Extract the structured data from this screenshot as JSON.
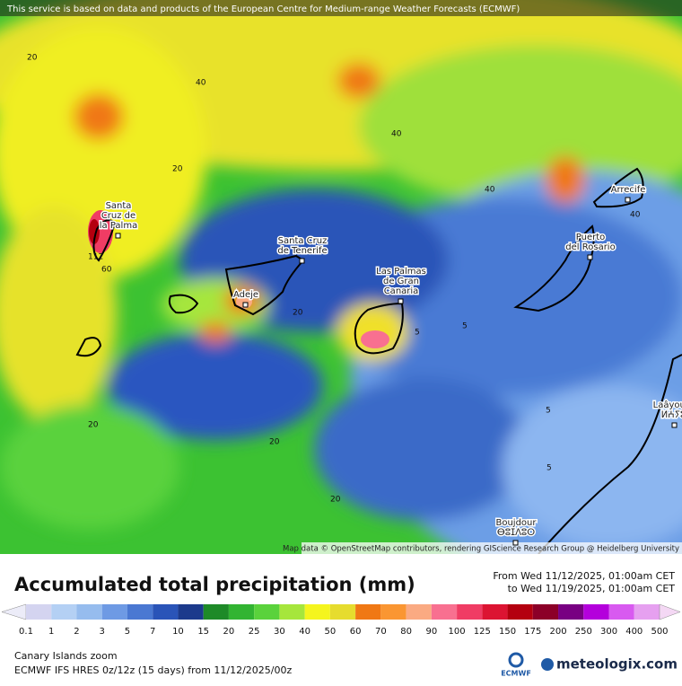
{
  "banner": "This service is based on data and products of the European Centre for Medium-range Weather Forecasts (ECMWF)",
  "attribution": "Map data © OpenStreetMap contributors, rendering GIScience Research Group @ Heidelberg University",
  "places": [
    {
      "lines": [
        "Santa",
        "Cruz de",
        "la Palma"
      ]
    },
    {
      "lines": [
        "Santa Cruz",
        "de Tenerife"
      ]
    },
    {
      "lines": [
        "Adeje"
      ]
    },
    {
      "lines": [
        "Las Palmas",
        "de Gran",
        "Canaria"
      ]
    },
    {
      "lines": [
        "Puerto",
        "del Rosario"
      ]
    },
    {
      "lines": [
        "Arrecife"
      ]
    },
    {
      "lines": [
        "Laâyoune",
        "ⵍⵄⵢⵓⵏ"
      ]
    },
    {
      "lines": [
        "Boujdour",
        "ⴱⵓⵊⴷⵓⵔ"
      ]
    }
  ],
  "contour_labels": [
    "20",
    "40",
    "40",
    "20",
    "40",
    "40",
    "112",
    "60",
    "20",
    "5",
    "5",
    "5",
    "5",
    "20",
    "20",
    "20"
  ],
  "title": "Accumulated total precipitation (mm)",
  "period": [
    "From Wed 11/12/2025, 01:00am CET",
    "to Wed 11/19/2025, 01:00am CET"
  ],
  "legend": {
    "levels": [
      0.1,
      1,
      2,
      3,
      5,
      7,
      10,
      15,
      20,
      25,
      30,
      40,
      50,
      60,
      70,
      80,
      90,
      100,
      125,
      150,
      175,
      200,
      250,
      300,
      400,
      500
    ],
    "colors": [
      "#ececf8",
      "#d4d4f0",
      "#b4d0f4",
      "#96bcee",
      "#6e9ae4",
      "#4a78d2",
      "#2a54b8",
      "#1c3a8c",
      "#1e8a28",
      "#32b432",
      "#5ad23c",
      "#a6e63c",
      "#f5f51e",
      "#e6dc2e",
      "#f07814",
      "#fa9632",
      "#faaa82",
      "#f87090",
      "#f03c64",
      "#dc1432",
      "#b4000f",
      "#8c0028",
      "#780082",
      "#b400dc",
      "#d85af0",
      "#e6a0f0",
      "#f4d8f4",
      "#f8f0f8",
      "#c8c8c8"
    ]
  },
  "footer": [
    "Canary Islands zoom",
    "ECMWF IFS HRES 0z/12z (15 days) from 11/12/2025/00z"
  ],
  "logos": {
    "ecmwf": "ECMWF",
    "brand": "meteologix.com"
  }
}
